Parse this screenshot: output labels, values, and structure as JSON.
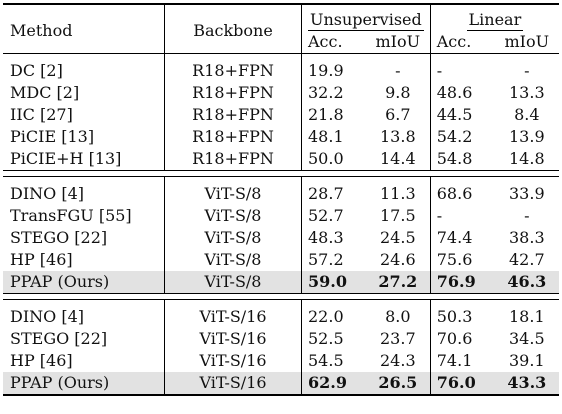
{
  "header": {
    "method": "Method",
    "backbone": "Backbone",
    "unsupervised": "Unsupervised",
    "linear": "Linear",
    "acc": "Acc.",
    "miou": "mIoU"
  },
  "blocks": [
    {
      "rows": [
        {
          "method": "DC [2]",
          "backbone": "R18+FPN",
          "u_acc": "19.9",
          "u_miou": "-",
          "l_acc": "-",
          "l_miou": "-"
        },
        {
          "method": "MDC [2]",
          "backbone": "R18+FPN",
          "u_acc": "32.2",
          "u_miou": "9.8",
          "l_acc": "48.6",
          "l_miou": "13.3"
        },
        {
          "method": "IIC [27]",
          "backbone": "R18+FPN",
          "u_acc": "21.8",
          "u_miou": "6.7",
          "l_acc": "44.5",
          "l_miou": "8.4"
        },
        {
          "method": "PiCIE [13]",
          "backbone": "R18+FPN",
          "u_acc": "48.1",
          "u_miou": "13.8",
          "l_acc": "54.2",
          "l_miou": "13.9"
        },
        {
          "method": "PiCIE+H [13]",
          "backbone": "R18+FPN",
          "u_acc": "50.0",
          "u_miou": "14.4",
          "l_acc": "54.8",
          "l_miou": "14.8"
        }
      ]
    },
    {
      "rows": [
        {
          "method": "DINO [4]",
          "backbone": "ViT-S/8",
          "u_acc": "28.7",
          "u_miou": "11.3",
          "l_acc": "68.6",
          "l_miou": "33.9"
        },
        {
          "method": "TransFGU [55]",
          "backbone": "ViT-S/8",
          "u_acc": "52.7",
          "u_miou": "17.5",
          "l_acc": "-",
          "l_miou": "-"
        },
        {
          "method": "STEGO [22]",
          "backbone": "ViT-S/8",
          "u_acc": "48.3",
          "u_miou": "24.5",
          "l_acc": "74.4",
          "l_miou": "38.3"
        },
        {
          "method": "HP [46]",
          "backbone": "ViT-S/8",
          "u_acc": "57.2",
          "u_miou": "24.6",
          "l_acc": "75.6",
          "l_miou": "42.7"
        },
        {
          "method": "PPAP (Ours)",
          "backbone": "ViT-S/8",
          "u_acc": "59.0",
          "u_miou": "27.2",
          "l_acc": "76.9",
          "l_miou": "46.3"
        }
      ]
    },
    {
      "rows": [
        {
          "method": "DINO [4]",
          "backbone": "ViT-S/16",
          "u_acc": "22.0",
          "u_miou": "8.0",
          "l_acc": "50.3",
          "l_miou": "18.1"
        },
        {
          "method": "STEGO [22]",
          "backbone": "ViT-S/16",
          "u_acc": "52.5",
          "u_miou": "23.7",
          "l_acc": "70.6",
          "l_miou": "34.5"
        },
        {
          "method": "HP [46]",
          "backbone": "ViT-S/16",
          "u_acc": "54.5",
          "u_miou": "24.3",
          "l_acc": "74.1",
          "l_miou": "39.1"
        },
        {
          "method": "PPAP (Ours)",
          "backbone": "ViT-S/16",
          "u_acc": "62.9",
          "u_miou": "26.5",
          "l_acc": "76.0",
          "l_miou": "43.3"
        }
      ]
    }
  ],
  "style": {
    "highlight_color": "#e2e2e2"
  }
}
